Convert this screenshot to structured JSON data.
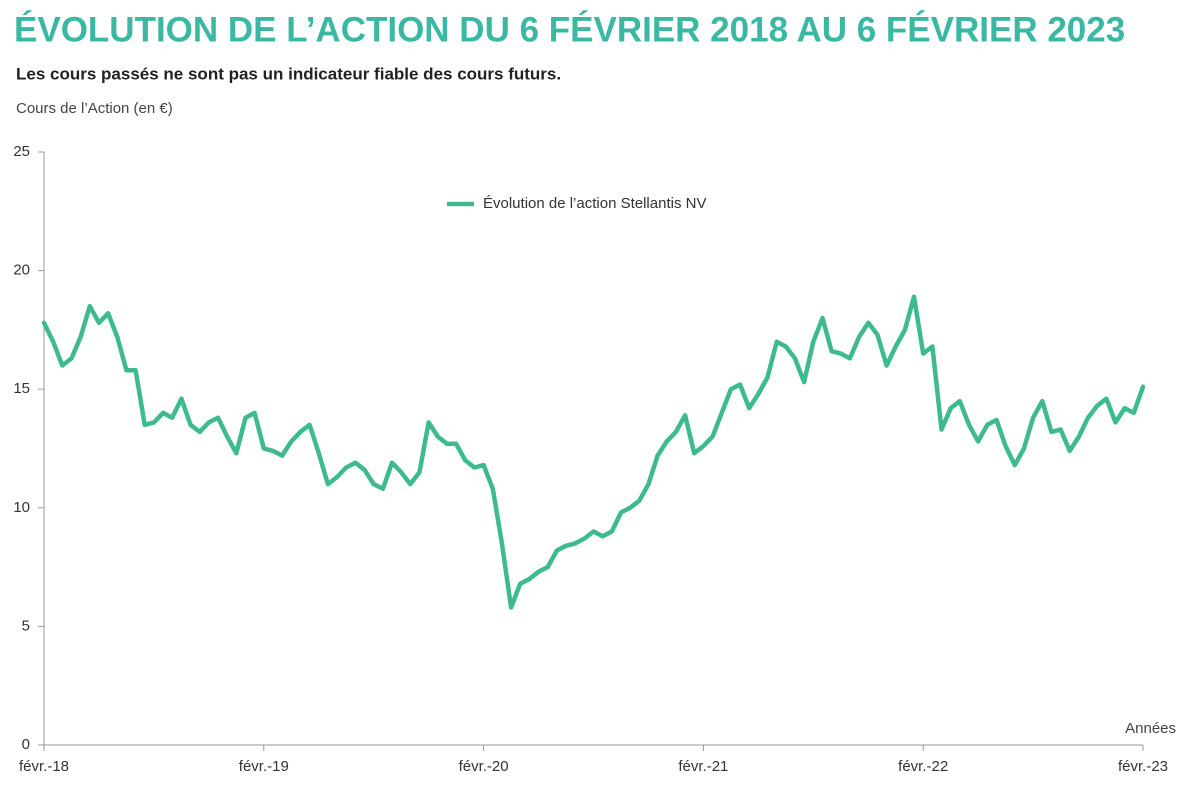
{
  "chart_data": {
    "type": "line",
    "title": "ÉVOLUTION DE L’ACTION DU 6 FÉVRIER 2018 AU 6 FÉVRIER 2023",
    "subtitle": "Les cours passés ne sont pas un indicateur fiable des cours futurs.",
    "y_label": "Cours de l’Action (en €)",
    "x_label": "Années",
    "x": [
      0,
      0.5,
      1,
      1.5,
      2,
      2.5,
      3,
      3.5,
      4,
      4.5,
      5,
      5.5,
      6,
      6.5,
      7,
      7.5,
      8,
      8.5,
      9,
      9.5,
      10,
      10.5,
      11,
      11.5,
      12,
      12.5,
      13,
      13.5,
      14,
      14.5,
      15,
      15.5,
      16,
      16.5,
      17,
      17.5,
      18,
      18.5,
      19,
      19.5,
      20,
      20.5,
      21,
      21.5,
      22,
      22.5,
      23,
      23.5,
      24,
      24.5,
      25,
      25.5,
      26,
      26.5,
      27,
      27.5,
      28,
      28.5,
      29,
      29.5,
      30,
      30.5,
      31,
      31.5,
      32,
      32.5,
      33,
      33.5,
      34,
      34.5,
      35,
      35.5,
      36,
      36.5,
      37,
      37.5,
      38,
      38.5,
      39,
      39.5,
      40,
      40.5,
      41,
      41.5,
      42,
      42.5,
      43,
      43.5,
      44,
      44.5,
      45,
      45.5,
      46,
      46.5,
      47,
      47.5,
      48,
      48.5,
      49,
      49.5,
      50,
      50.5,
      51,
      51.5,
      52,
      52.5,
      53,
      53.5,
      54,
      54.5,
      55,
      55.5,
      56,
      56.5,
      57,
      57.5,
      58,
      58.5,
      59,
      59.5,
      60
    ],
    "series": [
      {
        "name": "Évolution de l’action Stellantis NV",
        "color": "#3dba8e",
        "values": [
          17.8,
          17.0,
          16.0,
          16.3,
          17.2,
          18.5,
          17.8,
          18.2,
          17.2,
          15.8,
          15.8,
          13.5,
          13.6,
          14.0,
          13.8,
          14.6,
          13.5,
          13.2,
          13.6,
          13.8,
          13.0,
          12.3,
          13.8,
          14.0,
          12.5,
          12.4,
          12.2,
          12.8,
          13.2,
          13.5,
          12.3,
          11.0,
          11.3,
          11.7,
          11.9,
          11.6,
          11.0,
          10.8,
          11.9,
          11.5,
          11.0,
          11.5,
          13.6,
          13.0,
          12.7,
          12.7,
          12.0,
          11.7,
          11.8,
          10.8,
          8.5,
          5.8,
          6.8,
          7.0,
          7.3,
          7.5,
          8.2,
          8.4,
          8.5,
          8.7,
          9.0,
          8.8,
          9.0,
          9.8,
          10.0,
          10.3,
          11.0,
          12.2,
          12.8,
          13.2,
          13.9,
          12.3,
          12.6,
          13.0,
          14.0,
          15.0,
          15.2,
          14.2,
          14.8,
          15.5,
          17.0,
          16.8,
          16.3,
          15.3,
          17.0,
          18.0,
          16.6,
          16.5,
          16.3,
          17.2,
          17.8,
          17.3,
          16.0,
          16.8,
          17.5,
          18.9,
          16.5,
          16.8,
          13.3,
          14.2,
          14.5,
          13.5,
          12.8,
          13.5,
          13.7,
          12.6,
          11.8,
          12.5,
          13.8,
          14.5,
          13.2,
          13.3,
          12.4,
          13.0,
          13.8,
          14.3,
          14.6,
          13.6,
          14.2,
          14.0,
          15.1
        ]
      }
    ],
    "xlim": [
      0,
      60
    ],
    "xticks": [
      {
        "value": 0,
        "label": "févr.-18"
      },
      {
        "value": 12,
        "label": "févr.-19"
      },
      {
        "value": 24,
        "label": "févr.-20"
      },
      {
        "value": 36,
        "label": "févr.-21"
      },
      {
        "value": 48,
        "label": "févr.-22"
      },
      {
        "value": 60,
        "label": "févr.-23"
      }
    ],
    "ylim": [
      0,
      25
    ],
    "yticks": [
      0,
      5,
      10,
      15,
      20,
      25
    ],
    "grid": false
  }
}
